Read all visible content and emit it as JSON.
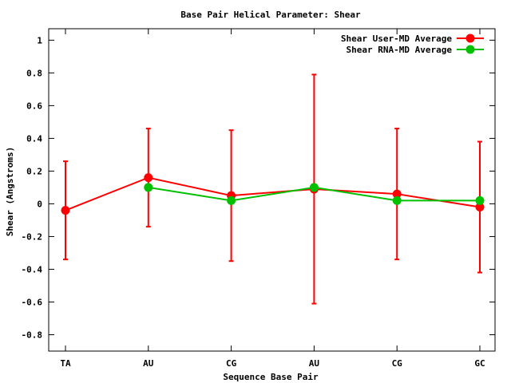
{
  "chart_data": {
    "type": "line",
    "title": "Base Pair Helical Parameter: Shear",
    "xlabel": "Sequence Base Pair",
    "ylabel": "Shear (Angstroms)",
    "categories": [
      "TA",
      "AU",
      "CG",
      "AU",
      "CG",
      "GC"
    ],
    "ylim": [
      -0.9,
      1.07
    ],
    "yticks": [
      -0.8,
      -0.6,
      -0.4,
      -0.2,
      0,
      0.2,
      0.4,
      0.6,
      0.8,
      1
    ],
    "ytick_labels": [
      "-0.8",
      "-0.6",
      "-0.4",
      "-0.2",
      "0",
      "0.2",
      "0.4",
      "0.6",
      "0.8",
      "1"
    ],
    "grid": false,
    "legend_position": "top-right",
    "series": [
      {
        "name": "Shear User-MD Average",
        "color": "#ff0000",
        "values": [
          -0.04,
          0.16,
          0.05,
          0.09,
          0.06,
          -0.02
        ],
        "error_low": [
          -0.34,
          -0.14,
          -0.35,
          -0.61,
          -0.34,
          -0.42
        ],
        "error_high": [
          0.26,
          0.46,
          0.45,
          0.79,
          0.46,
          0.38
        ]
      },
      {
        "name": "Shear RNA-MD Average",
        "color": "#00c000",
        "values": [
          null,
          0.1,
          0.02,
          0.1,
          0.02,
          0.02
        ]
      }
    ]
  }
}
